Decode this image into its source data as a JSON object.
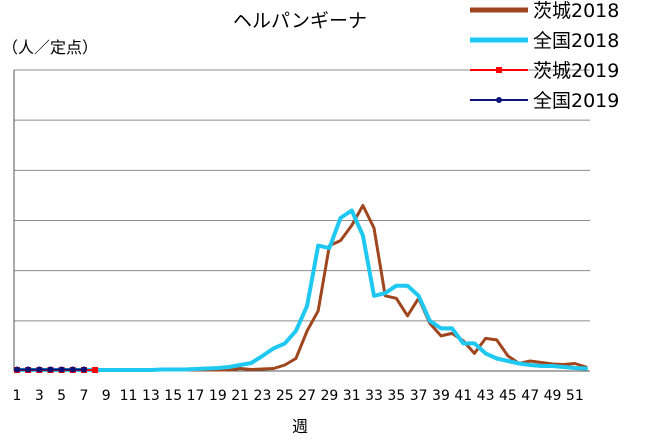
{
  "chart_data": {
    "type": "line",
    "title": "ヘルパンギーナ",
    "ylabel": "（人／定点）",
    "xlabel": "週",
    "ylim": [
      0,
      6
    ],
    "xlim": [
      1,
      52
    ],
    "grid": true,
    "y_tick_labels_shown": false,
    "x_tick_labels": [
      "1",
      "3",
      "5",
      "7",
      "9",
      "11",
      "13",
      "15",
      "17",
      "19",
      "21",
      "23",
      "25",
      "27",
      "29",
      "31",
      "33",
      "35",
      "37",
      "39",
      "41",
      "43",
      "45",
      "47",
      "49",
      "51"
    ],
    "legend_position": "top-right",
    "series": [
      {
        "name": "茨城2018",
        "color": "#A0461E",
        "marker": "none",
        "x": [
          1,
          2,
          3,
          4,
          5,
          6,
          7,
          8,
          9,
          10,
          11,
          12,
          13,
          14,
          15,
          16,
          17,
          18,
          19,
          20,
          21,
          22,
          23,
          24,
          25,
          26,
          27,
          28,
          29,
          30,
          31,
          32,
          33,
          34,
          35,
          36,
          37,
          38,
          39,
          40,
          41,
          42,
          43,
          44,
          45,
          46,
          47,
          48,
          49,
          50,
          51,
          52
        ],
        "values": [
          0.02,
          0.02,
          0.02,
          0.02,
          0.02,
          0.02,
          0.02,
          0.02,
          0.02,
          0.02,
          0.02,
          0.02,
          0.02,
          0.02,
          0.02,
          0.02,
          0.02,
          0.02,
          0.02,
          0.02,
          0.05,
          0.03,
          0.04,
          0.05,
          0.12,
          0.25,
          0.8,
          1.2,
          2.5,
          2.6,
          2.9,
          3.3,
          2.85,
          1.5,
          1.45,
          1.1,
          1.45,
          0.95,
          0.7,
          0.75,
          0.6,
          0.35,
          0.65,
          0.62,
          0.3,
          0.15,
          0.2,
          0.17,
          0.14,
          0.13,
          0.15,
          0.08
        ]
      },
      {
        "name": "全国2018",
        "color": "#1EC8F0",
        "marker": "none",
        "x": [
          1,
          2,
          3,
          4,
          5,
          6,
          7,
          8,
          9,
          10,
          11,
          12,
          13,
          14,
          15,
          16,
          17,
          18,
          19,
          20,
          21,
          22,
          23,
          24,
          25,
          26,
          27,
          28,
          29,
          30,
          31,
          32,
          33,
          34,
          35,
          36,
          37,
          38,
          39,
          40,
          41,
          42,
          43,
          44,
          45,
          46,
          47,
          48,
          49,
          50,
          51,
          52
        ],
        "values": [
          0.02,
          0.02,
          0.02,
          0.02,
          0.02,
          0.02,
          0.02,
          0.02,
          0.02,
          0.02,
          0.02,
          0.02,
          0.02,
          0.03,
          0.03,
          0.03,
          0.04,
          0.05,
          0.06,
          0.08,
          0.12,
          0.16,
          0.3,
          0.45,
          0.55,
          0.8,
          1.3,
          2.5,
          2.45,
          3.05,
          3.2,
          2.7,
          1.5,
          1.55,
          1.7,
          1.7,
          1.5,
          1.0,
          0.85,
          0.85,
          0.55,
          0.55,
          0.35,
          0.25,
          0.2,
          0.15,
          0.12,
          0.1,
          0.1,
          0.08,
          0.06,
          0.05
        ]
      },
      {
        "name": "茨城2019",
        "color": "#FF0000",
        "marker": "square",
        "x": [
          1,
          2,
          3,
          4,
          5,
          6,
          7,
          8
        ],
        "values": [
          0.02,
          0.02,
          0.02,
          0.02,
          0.02,
          0.02,
          0.02,
          0.02
        ]
      },
      {
        "name": "全国2019",
        "color": "#0A1478",
        "marker": "circle",
        "x": [
          1,
          2,
          3,
          4,
          5,
          6,
          7
        ],
        "values": [
          0.03,
          0.03,
          0.03,
          0.03,
          0.03,
          0.03,
          0.03
        ]
      }
    ]
  }
}
